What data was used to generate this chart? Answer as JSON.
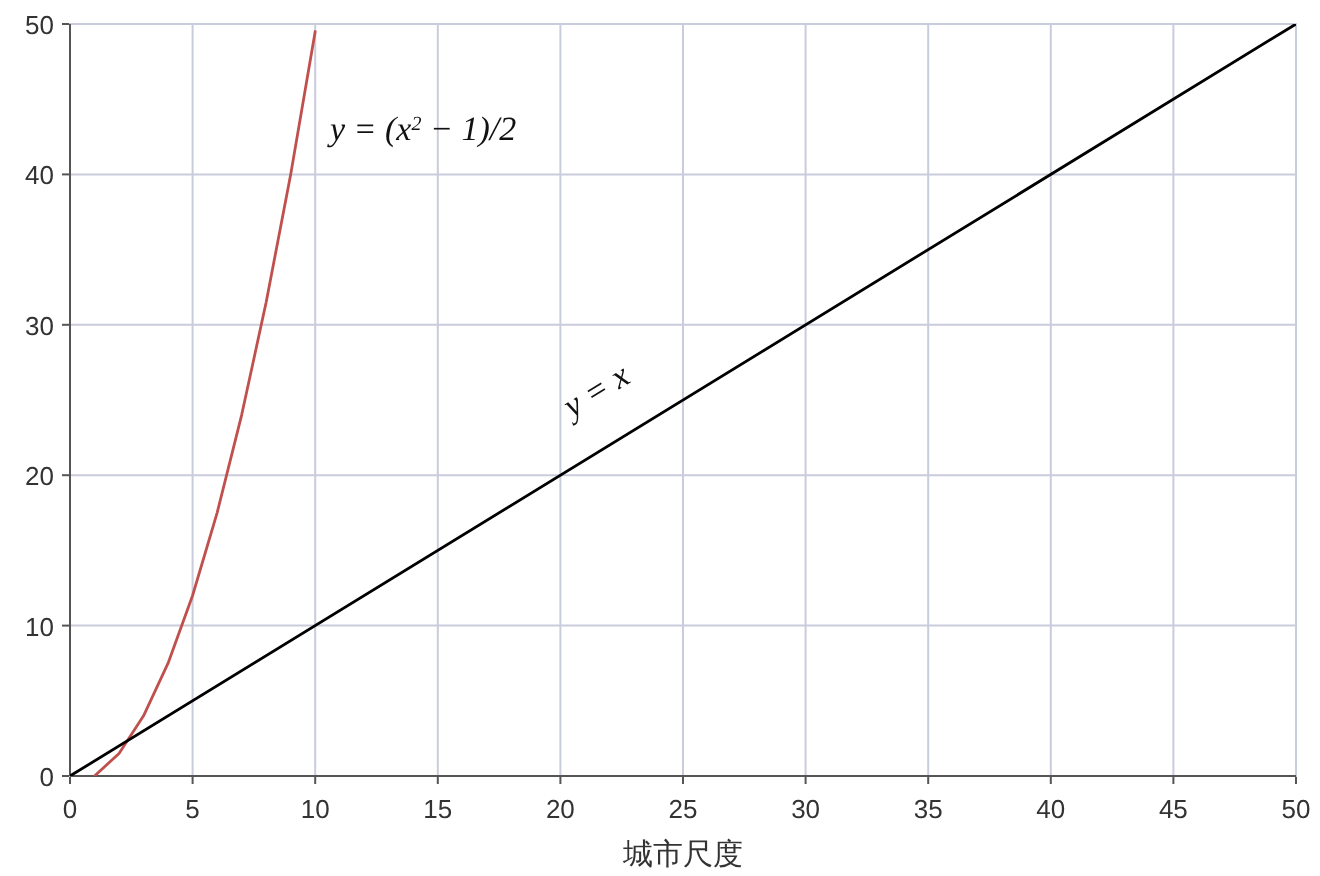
{
  "chart_data": {
    "type": "line",
    "xlabel": "城市尺度",
    "xlim": [
      0,
      50
    ],
    "ylim": [
      0,
      50
    ],
    "xticks": [
      0,
      5,
      10,
      15,
      20,
      25,
      30,
      35,
      40,
      45,
      50
    ],
    "yticks": [
      0,
      10,
      20,
      30,
      40,
      50
    ],
    "grid": true,
    "marker": "none",
    "line_style": "solid",
    "series": [
      {
        "color": "#c0504d",
        "x": [
          1,
          2,
          3,
          4,
          5,
          6,
          7,
          8,
          9,
          10
        ],
        "values": [
          0,
          1.5,
          4,
          7.5,
          12,
          17.5,
          24,
          31.5,
          40,
          49.5
        ]
      },
      {
        "color": "#000000",
        "x": [
          0,
          50
        ],
        "values": [
          0,
          50
        ]
      }
    ],
    "annotations": [
      "y = (x$^{2}$ − 1)/2",
      "y = x"
    ]
  }
}
